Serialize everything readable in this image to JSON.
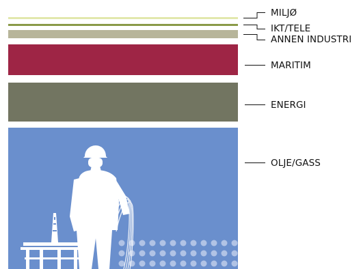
{
  "sectors": [
    {
      "key": "miljo",
      "label": "MILJØ",
      "color": "#e2e8ad"
    },
    {
      "key": "ikt",
      "label": "IKT/TELE",
      "color": "#8a9a48"
    },
    {
      "key": "annen",
      "label": "ANNEN INDUSTRI",
      "color": "#b7b59a"
    },
    {
      "key": "maritim",
      "label": "MARITIM",
      "color": "#9e2545"
    },
    {
      "key": "energi",
      "label": "ENERGI",
      "color": "#727561"
    },
    {
      "key": "olje",
      "label": "OLJE/GASS",
      "color": "#6a8fcd"
    }
  ]
}
